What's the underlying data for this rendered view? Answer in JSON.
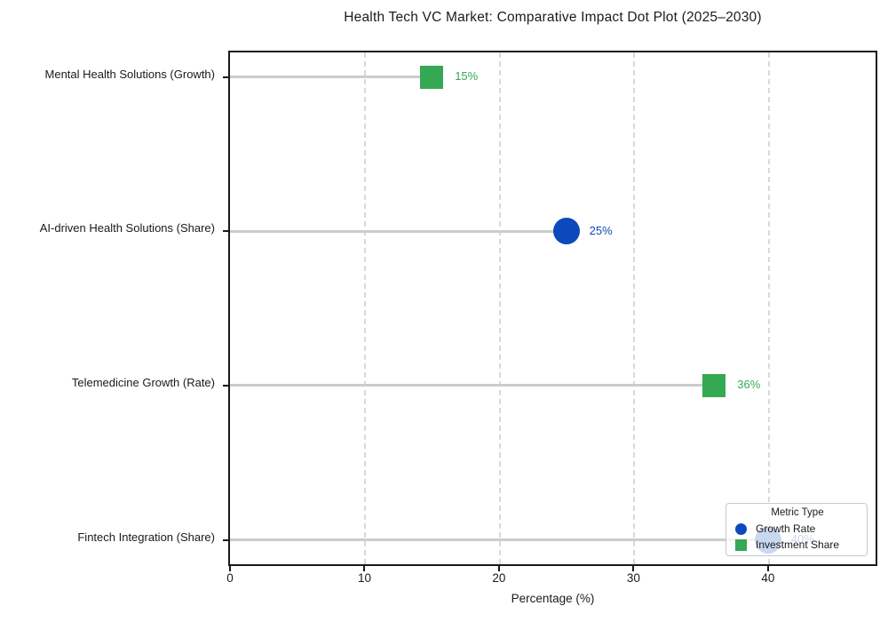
{
  "chart_data": {
    "type": "scatter",
    "variant": "horizontal-dot-plot-lollipop",
    "title": "Health Tech VC Market: Comparative Impact Dot Plot (2025–2030)",
    "xlabel": "Percentage (%)",
    "ylabel": "",
    "xlim": [
      0,
      48
    ],
    "xticks": [
      0,
      10,
      20,
      30,
      40
    ],
    "grid": "vertical-dashed",
    "categories_top_to_bottom": [
      "Mental Health Solutions (Growth)",
      "AI-driven Health Solutions (Share)",
      "Telemedicine Growth (Rate)",
      "Fintech Integration (Share)"
    ],
    "points": [
      {
        "category": "Mental Health Solutions (Growth)",
        "value": 15,
        "value_label": "15%",
        "series": "Investment Share",
        "marker": "square",
        "color": "#34a853",
        "occluded_by_legend": false
      },
      {
        "category": "AI-driven Health Solutions (Share)",
        "value": 25,
        "value_label": "25%",
        "series": "Growth Rate",
        "marker": "circle",
        "color": "#0e49bb",
        "occluded_by_legend": false
      },
      {
        "category": "Telemedicine Growth (Rate)",
        "value": 36,
        "value_label": "36%",
        "series": "Investment Share",
        "marker": "square",
        "color": "#34a853",
        "occluded_by_legend": false
      },
      {
        "category": "Fintech Integration (Share)",
        "value": 40,
        "value_label": "40%",
        "series": "Growth Rate",
        "marker": "circle",
        "color": "#0e49bb",
        "occluded_by_legend": true
      }
    ],
    "legend": {
      "title": "Metric Type",
      "position": "lower-right",
      "entries": [
        {
          "label": "Growth Rate",
          "marker": "circle",
          "color": "#0e49bb"
        },
        {
          "label": "Investment Share",
          "marker": "square",
          "color": "#34a853"
        }
      ]
    },
    "colors": {
      "growth_rate_blue": "#0e49bb",
      "investment_share_green": "#34a853",
      "stem_gray": "#cccccc",
      "grid_gray": "#d9d9d9",
      "axis_black": "#1a1a1a"
    }
  }
}
